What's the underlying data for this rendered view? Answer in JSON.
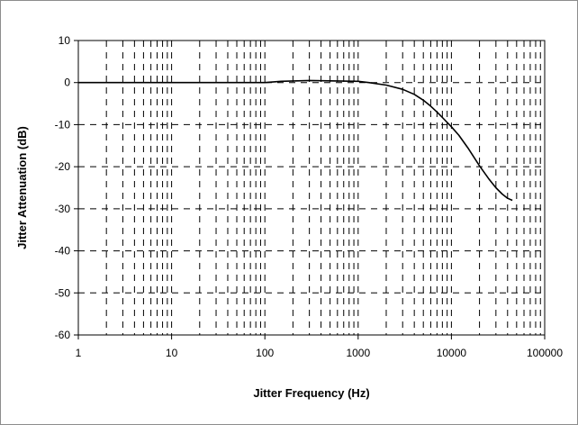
{
  "chart_data": {
    "type": "line",
    "title": "",
    "xlabel": "Jitter Frequency (Hz)",
    "ylabel": "Jitter Attenuation (dB)",
    "xscale": "log",
    "xlim": [
      1,
      100000
    ],
    "ylim": [
      -60,
      10
    ],
    "x_ticks": [
      1,
      10,
      100,
      1000,
      10000,
      100000
    ],
    "x_tick_labels": [
      "1",
      "10",
      "100",
      "1000",
      "10000",
      "100000"
    ],
    "y_ticks": [
      10,
      0,
      -10,
      -20,
      -30,
      -40,
      -50,
      -60
    ],
    "y_tick_labels": [
      "10",
      "0",
      "-10",
      "-20",
      "-30",
      "-40",
      "-50",
      "-60"
    ],
    "grid": "dashed major and minor",
    "legend": "none",
    "line_color": "#000000",
    "series": [
      {
        "x": [
          1,
          10,
          100,
          150,
          300,
          1000,
          1300,
          2000,
          3000,
          4000,
          5000,
          6000,
          7000,
          8000,
          10000,
          12000,
          15000,
          20000,
          25000,
          30000,
          35000,
          40000,
          45000
        ],
        "y": [
          0,
          0,
          0,
          0.3,
          0.5,
          0.3,
          0,
          -0.6,
          -1.6,
          -2.8,
          -4.2,
          -5.6,
          -7.0,
          -8.3,
          -10.5,
          -12.5,
          -15.5,
          -19.8,
          -22.8,
          -25.0,
          -26.5,
          -27.5,
          -28
        ]
      }
    ]
  }
}
